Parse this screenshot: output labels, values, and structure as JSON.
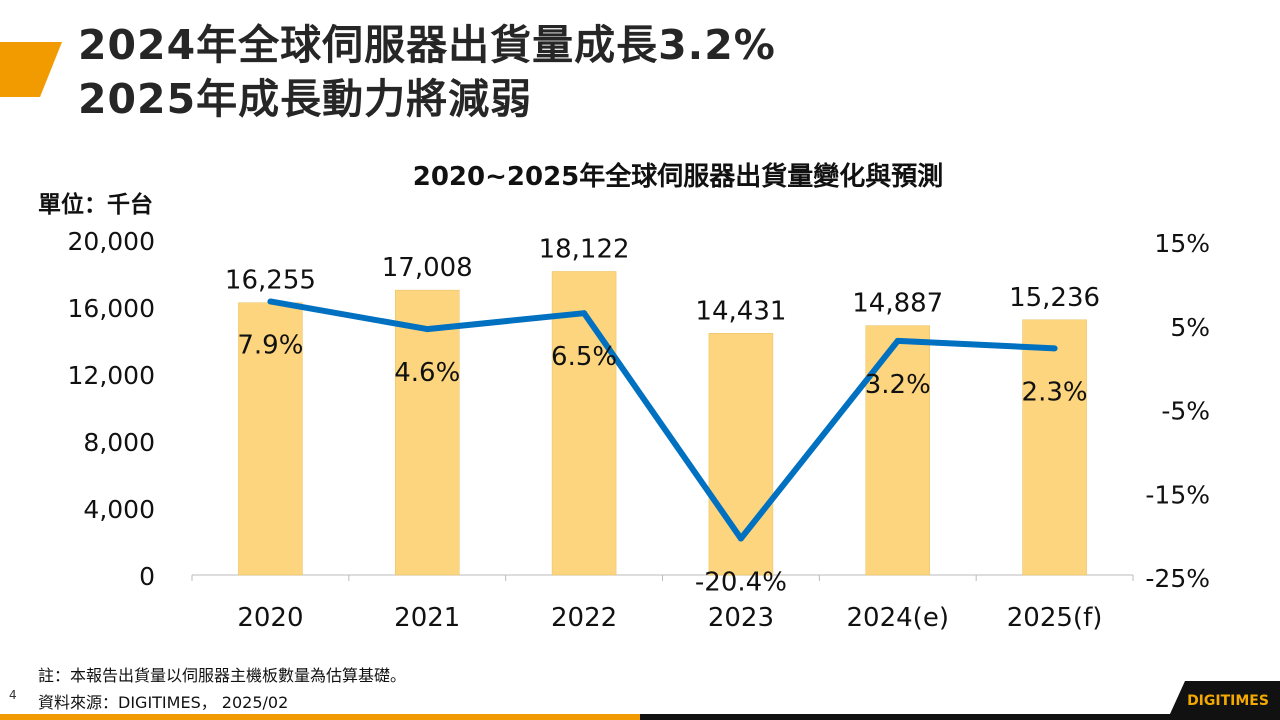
{
  "slide": {
    "title_line1": "2024年全球伺服器出貨量成長3.2%",
    "title_line2": "2025年成長動力將減弱",
    "note": "註：本報告出貨量以伺服器主機板數量為估算基礎。",
    "source": "資料來源：DIGITIMES， 2025/02",
    "page_number": "4",
    "logo_text": "DIGITIMES",
    "accent_color": "#F29B00",
    "footer_dark_color": "#111111"
  },
  "chart_data": {
    "type": "bar+line",
    "title": "2020~2025年全球伺服器出貨量變化與預測",
    "unit_label": "單位：千台",
    "categories": [
      "2020",
      "2021",
      "2022",
      "2023",
      "2024(e)",
      "2025(f)"
    ],
    "series": [
      {
        "type": "bar",
        "axis": "left",
        "values": [
          16255,
          17008,
          18122,
          14431,
          14887,
          15236
        ],
        "labels": [
          "16,255",
          "17,008",
          "18,122",
          "14,431",
          "14,887",
          "15,236"
        ],
        "color": "#FCD57E"
      },
      {
        "type": "line",
        "axis": "right",
        "values": [
          7.9,
          4.6,
          6.5,
          -20.4,
          3.2,
          2.3
        ],
        "labels": [
          "7.9%",
          "4.6%",
          "6.5%",
          "-20.4%",
          "3.2%",
          "2.3%"
        ],
        "color": "#0070C0"
      }
    ],
    "left_axis": {
      "ylim": [
        0,
        20000
      ],
      "ticks": [
        "0",
        "4,000",
        "8,000",
        "12,000",
        "16,000",
        "20,000"
      ],
      "tick_values": [
        0,
        4000,
        8000,
        12000,
        16000,
        20000
      ]
    },
    "right_axis": {
      "ylim": [
        -25,
        15
      ],
      "ticks": [
        "-25%",
        "-15%",
        "-5%",
        "5%",
        "15%"
      ],
      "tick_values": [
        -25,
        -15,
        -5,
        5,
        15
      ]
    },
    "grid": false,
    "legend": "none"
  }
}
